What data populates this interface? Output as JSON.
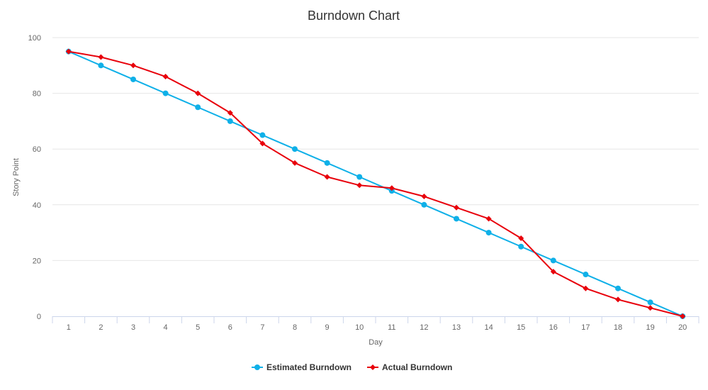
{
  "chart_data": {
    "type": "line",
    "title": "Burndown Chart",
    "xlabel": "Day",
    "ylabel": "Story Point",
    "x": [
      1,
      2,
      3,
      4,
      5,
      6,
      7,
      8,
      9,
      10,
      11,
      12,
      13,
      14,
      15,
      16,
      17,
      18,
      19,
      20
    ],
    "ylim": [
      0,
      100
    ],
    "yticks": [
      0,
      20,
      40,
      60,
      80,
      100
    ],
    "grid": true,
    "legend_position": "bottom-center",
    "series": [
      {
        "name": "Estimated Burndown",
        "color": "#0fb0e8",
        "marker": "circle",
        "values": [
          95,
          90,
          85,
          80,
          75,
          70,
          65,
          60,
          55,
          50,
          45,
          40,
          35,
          30,
          25,
          20,
          15,
          10,
          5,
          0
        ]
      },
      {
        "name": "Actual Burndown",
        "color": "#e8000b",
        "marker": "diamond",
        "values": [
          95,
          93,
          90,
          86,
          80,
          73,
          62,
          55,
          50,
          47,
          46,
          43,
          39,
          35,
          28,
          16,
          10,
          6,
          3,
          0
        ]
      }
    ]
  }
}
